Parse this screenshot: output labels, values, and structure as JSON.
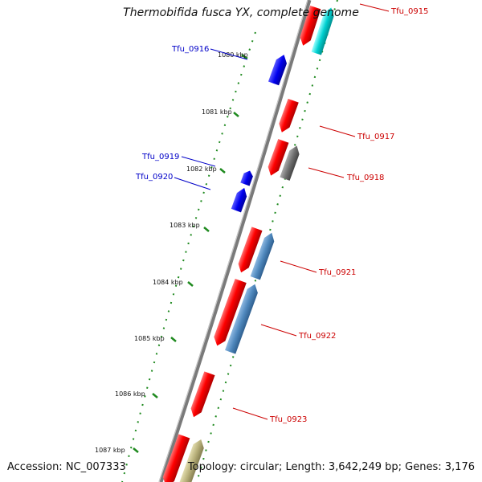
{
  "title": "Thermobifida fusca YX, complete genome",
  "footer": {
    "accession": "Accession: NC_007333",
    "summary": "Topology: circular; Length: 3,642,249 bp; Genes: 3,176"
  },
  "colors": {
    "backbone": "#808080",
    "tick_dots": "#1f8a1f",
    "forward_gene": "#ff0000",
    "reverse_gene_label": "#0000c8",
    "forward_gene_label": "#cc0000",
    "cyan_gene": "#00d0d0",
    "steel_gene": "#4f88bd",
    "grey_gene": "#707070",
    "olive_gene": "#b8b07a"
  },
  "ticks": [
    "1080 kbp",
    "1081 kbp",
    "1082 kbp",
    "1083 kbp",
    "1084 kbp",
    "1085 kbp",
    "1086 kbp",
    "1087 kbp"
  ],
  "genes": [
    {
      "name": "Tfu_0915",
      "strand": "forward"
    },
    {
      "name": "Tfu_0916",
      "strand": "reverse"
    },
    {
      "name": "Tfu_0917",
      "strand": "forward"
    },
    {
      "name": "Tfu_0918",
      "strand": "forward"
    },
    {
      "name": "Tfu_0919",
      "strand": "reverse"
    },
    {
      "name": "Tfu_0920",
      "strand": "reverse"
    },
    {
      "name": "Tfu_0921",
      "strand": "forward"
    },
    {
      "name": "Tfu_0922",
      "strand": "forward"
    },
    {
      "name": "Tfu_0923",
      "strand": "forward"
    }
  ]
}
